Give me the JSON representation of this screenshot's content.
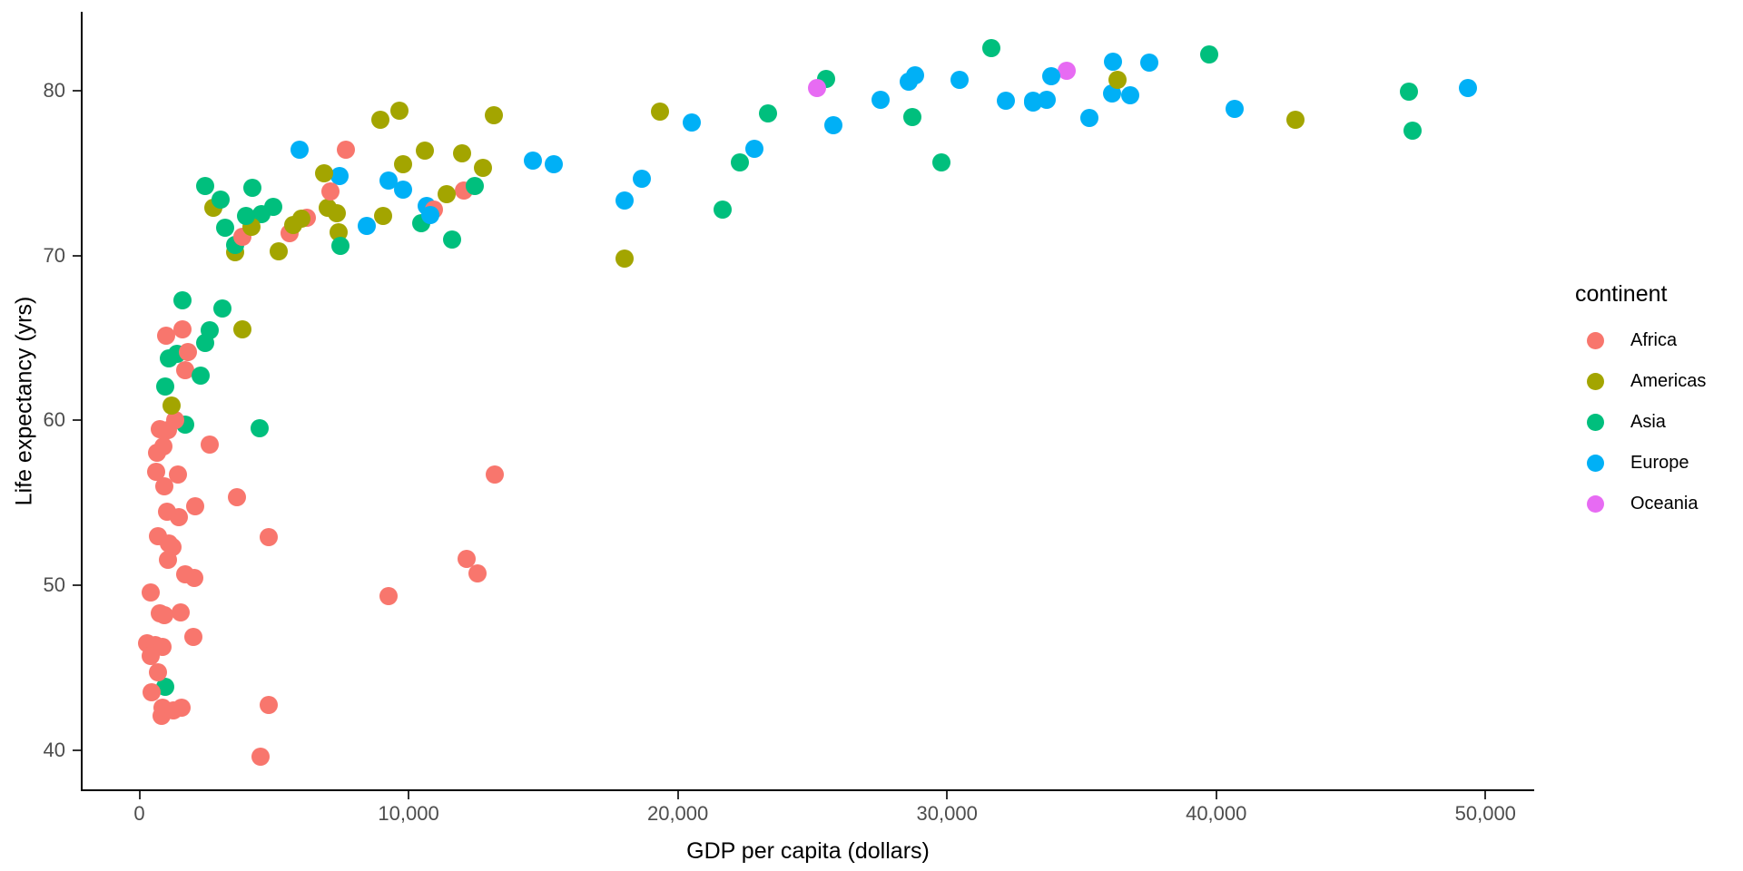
{
  "figure": {
    "background": "#ffffff"
  },
  "chart_data": {
    "type": "scatter",
    "title": "",
    "xlabel": "GDP per capita (dollars)",
    "ylabel": "Life expectancy (yrs)",
    "xlim": [
      -2176,
      51811
    ],
    "ylim": [
      37.5,
      84.8
    ],
    "grid": false,
    "x_ticks": [
      {
        "value": 0,
        "label": "0"
      },
      {
        "value": 10000,
        "label": "10,000"
      },
      {
        "value": 20000,
        "label": "20,000"
      },
      {
        "value": 30000,
        "label": "30,000"
      },
      {
        "value": 40000,
        "label": "40,000"
      },
      {
        "value": 50000,
        "label": "50,000"
      }
    ],
    "y_ticks": [
      {
        "value": 40,
        "label": "40"
      },
      {
        "value": 50,
        "label": "50"
      },
      {
        "value": 60,
        "label": "60"
      },
      {
        "value": 70,
        "label": "70"
      },
      {
        "value": 80,
        "label": "80"
      }
    ],
    "legend": {
      "title": "continent",
      "position": "right",
      "entries": [
        {
          "label": "Africa",
          "color": "#F8766D"
        },
        {
          "label": "Americas",
          "color": "#A3A500"
        },
        {
          "label": "Asia",
          "color": "#00BF7D"
        },
        {
          "label": "Europe",
          "color": "#00B0F6"
        },
        {
          "label": "Oceania",
          "color": "#E76BF3"
        }
      ]
    },
    "axis_colors": {
      "line": "#000000",
      "tick_mark": "#333333",
      "tick_label": "#4d4d4d",
      "title": "#000000"
    },
    "points_format": [
      "gdp_per_capita_dollars",
      "life_expectancy_yrs",
      "continent"
    ],
    "points": [
      [
        975,
        43.83,
        "Asia"
      ],
      [
        5937,
        76.42,
        "Europe"
      ],
      [
        6223,
        72.3,
        "Africa"
      ],
      [
        4797,
        42.73,
        "Africa"
      ],
      [
        12779,
        75.32,
        "Americas"
      ],
      [
        34435,
        81.23,
        "Oceania"
      ],
      [
        36126,
        79.83,
        "Europe"
      ],
      [
        29796,
        75.64,
        "Asia"
      ],
      [
        1391,
        64.06,
        "Asia"
      ],
      [
        33693,
        79.44,
        "Europe"
      ],
      [
        1441,
        56.73,
        "Africa"
      ],
      [
        3822,
        65.55,
        "Americas"
      ],
      [
        7446,
        74.85,
        "Europe"
      ],
      [
        12570,
        50.73,
        "Africa"
      ],
      [
        9066,
        72.39,
        "Americas"
      ],
      [
        10681,
        73.0,
        "Europe"
      ],
      [
        1217,
        52.3,
        "Africa"
      ],
      [
        430,
        49.58,
        "Africa"
      ],
      [
        1714,
        59.72,
        "Asia"
      ],
      [
        2042,
        50.43,
        "Africa"
      ],
      [
        36319,
        80.65,
        "Americas"
      ],
      [
        706,
        44.74,
        "Africa"
      ],
      [
        1704,
        50.65,
        "Africa"
      ],
      [
        13172,
        78.55,
        "Americas"
      ],
      [
        4959,
        72.96,
        "Asia"
      ],
      [
        7007,
        72.89,
        "Americas"
      ],
      [
        986,
        65.15,
        "Africa"
      ],
      [
        278,
        46.46,
        "Africa"
      ],
      [
        3633,
        55.32,
        "Africa"
      ],
      [
        9645,
        78.78,
        "Americas"
      ],
      [
        1545,
        48.33,
        "Africa"
      ],
      [
        14619,
        75.75,
        "Europe"
      ],
      [
        8948,
        78.27,
        "Americas"
      ],
      [
        22833,
        76.49,
        "Europe"
      ],
      [
        35278,
        78.33,
        "Europe"
      ],
      [
        2082,
        54.79,
        "Africa"
      ],
      [
        6025,
        72.24,
        "Americas"
      ],
      [
        6873,
        75.0,
        "Americas"
      ],
      [
        5581,
        71.34,
        "Africa"
      ],
      [
        5728,
        71.88,
        "Americas"
      ],
      [
        12154,
        51.58,
        "Africa"
      ],
      [
        641,
        58.04,
        "Africa"
      ],
      [
        691,
        52.95,
        "Africa"
      ],
      [
        33207,
        79.31,
        "Europe"
      ],
      [
        30470,
        80.66,
        "Europe"
      ],
      [
        13206,
        56.73,
        "Africa"
      ],
      [
        753,
        59.45,
        "Africa"
      ],
      [
        32170,
        79.41,
        "Europe"
      ],
      [
        1328,
        60.02,
        "Africa"
      ],
      [
        27538,
        79.48,
        "Europe"
      ],
      [
        5186,
        70.26,
        "Americas"
      ],
      [
        943,
        56.01,
        "Africa"
      ],
      [
        579,
        46.39,
        "Africa"
      ],
      [
        1202,
        60.92,
        "Americas"
      ],
      [
        3548,
        70.2,
        "Americas"
      ],
      [
        39725,
        82.21,
        "Asia"
      ],
      [
        18009,
        73.34,
        "Europe"
      ],
      [
        36181,
        81.76,
        "Europe"
      ],
      [
        2452,
        64.7,
        "Asia"
      ],
      [
        3541,
        70.65,
        "Asia"
      ],
      [
        11606,
        70.96,
        "Asia"
      ],
      [
        4471,
        59.55,
        "Asia"
      ],
      [
        40676,
        78.89,
        "Europe"
      ],
      [
        25523,
        80.75,
        "Asia"
      ],
      [
        28570,
        80.55,
        "Europe"
      ],
      [
        7321,
        72.57,
        "Americas"
      ],
      [
        31656,
        82.6,
        "Asia"
      ],
      [
        4519,
        72.54,
        "Asia"
      ],
      [
        1463,
        54.11,
        "Africa"
      ],
      [
        1593,
        67.3,
        "Asia"
      ],
      [
        23348,
        78.62,
        "Asia"
      ],
      [
        47307,
        77.59,
        "Asia"
      ],
      [
        10461,
        71.99,
        "Asia"
      ],
      [
        1569,
        42.59,
        "Africa"
      ],
      [
        415,
        45.68,
        "Africa"
      ],
      [
        12057,
        73.95,
        "Africa"
      ],
      [
        1045,
        59.44,
        "Africa"
      ],
      [
        759,
        48.3,
        "Africa"
      ],
      [
        12452,
        74.24,
        "Asia"
      ],
      [
        1043,
        54.47,
        "Africa"
      ],
      [
        1803,
        64.16,
        "Africa"
      ],
      [
        10957,
        72.8,
        "Africa"
      ],
      [
        11978,
        76.19,
        "Americas"
      ],
      [
        3096,
        66.8,
        "Asia"
      ],
      [
        9254,
        74.54,
        "Europe"
      ],
      [
        3820,
        71.16,
        "Africa"
      ],
      [
        824,
        42.08,
        "Africa"
      ],
      [
        944,
        62.07,
        "Asia"
      ],
      [
        4811,
        52.91,
        "Africa"
      ],
      [
        1091,
        63.79,
        "Asia"
      ],
      [
        36798,
        79.76,
        "Europe"
      ],
      [
        25185,
        80.2,
        "Oceania"
      ],
      [
        2749,
        72.9,
        "Americas"
      ],
      [
        620,
        56.87,
        "Africa"
      ],
      [
        2014,
        46.86,
        "Africa"
      ],
      [
        49357,
        80.2,
        "Europe"
      ],
      [
        22316,
        75.64,
        "Asia"
      ],
      [
        2606,
        65.48,
        "Asia"
      ],
      [
        9809,
        75.54,
        "Americas"
      ],
      [
        4173,
        71.75,
        "Americas"
      ],
      [
        7409,
        71.42,
        "Americas"
      ],
      [
        3190,
        71.69,
        "Asia"
      ],
      [
        15390,
        75.56,
        "Europe"
      ],
      [
        20510,
        78.1,
        "Europe"
      ],
      [
        19329,
        78.75,
        "Americas"
      ],
      [
        7670,
        76.44,
        "Africa"
      ],
      [
        10808,
        72.48,
        "Europe"
      ],
      [
        863,
        46.24,
        "Africa"
      ],
      [
        1598,
        65.53,
        "Africa"
      ],
      [
        21655,
        72.78,
        "Asia"
      ],
      [
        1712,
        63.06,
        "Africa"
      ],
      [
        9787,
        74.0,
        "Europe"
      ],
      [
        863,
        42.57,
        "Africa"
      ],
      [
        47143,
        79.97,
        "Asia"
      ],
      [
        18678,
        74.66,
        "Europe"
      ],
      [
        25768,
        77.93,
        "Europe"
      ],
      [
        926,
        48.16,
        "Africa"
      ],
      [
        9270,
        49.34,
        "Africa"
      ],
      [
        28821,
        80.94,
        "Europe"
      ],
      [
        3970,
        72.4,
        "Asia"
      ],
      [
        2602,
        58.56,
        "Africa"
      ],
      [
        4513,
        39.61,
        "Africa"
      ],
      [
        33860,
        80.88,
        "Europe"
      ],
      [
        37506,
        81.7,
        "Europe"
      ],
      [
        4185,
        74.14,
        "Asia"
      ],
      [
        28718,
        78.4,
        "Asia"
      ],
      [
        1107,
        52.52,
        "Africa"
      ],
      [
        7458,
        70.62,
        "Asia"
      ],
      [
        883,
        58.42,
        "Africa"
      ],
      [
        18009,
        69.82,
        "Americas"
      ],
      [
        7093,
        73.92,
        "Africa"
      ],
      [
        8458,
        71.78,
        "Europe"
      ],
      [
        1056,
        51.54,
        "Africa"
      ],
      [
        33203,
        79.43,
        "Europe"
      ],
      [
        42952,
        78.24,
        "Americas"
      ],
      [
        10611,
        76.38,
        "Americas"
      ],
      [
        11416,
        73.75,
        "Americas"
      ],
      [
        2442,
        74.25,
        "Asia"
      ],
      [
        3025,
        73.42,
        "Asia"
      ],
      [
        2281,
        62.7,
        "Asia"
      ],
      [
        1271,
        42.38,
        "Africa"
      ],
      [
        470,
        43.49,
        "Africa"
      ]
    ]
  }
}
